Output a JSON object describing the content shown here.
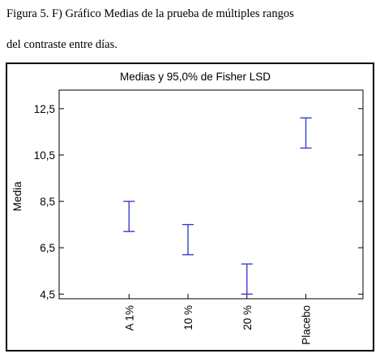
{
  "caption": {
    "line1": "Figura 5. F) Gráfico Medias de la prueba de múltiples rangos",
    "line2": "del  contraste entre días."
  },
  "colors": {
    "interval": "#3b3bd6",
    "axis": "#000000"
  },
  "chart_data": {
    "type": "interval",
    "title": "Medias y 95,0% de Fisher LSD",
    "xlabel": "",
    "ylabel": "Media",
    "ylim": [
      4.3,
      13.3
    ],
    "yticks": [
      4.5,
      6.5,
      8.5,
      10.5,
      12.5
    ],
    "ytick_labels": [
      "4,5",
      "6,5",
      "8,5",
      "10,5",
      "12,5"
    ],
    "categories": [
      "A 1%",
      "10 %",
      "20 %",
      "Placebo"
    ],
    "intervals": [
      {
        "category": "A 1%",
        "low": 7.2,
        "high": 8.5
      },
      {
        "category": "10 %",
        "low": 6.2,
        "high": 7.5
      },
      {
        "category": "20 %",
        "low": 4.5,
        "high": 5.8
      },
      {
        "category": "Placebo",
        "low": 10.8,
        "high": 12.1
      }
    ],
    "grid": false,
    "legend": "none"
  }
}
